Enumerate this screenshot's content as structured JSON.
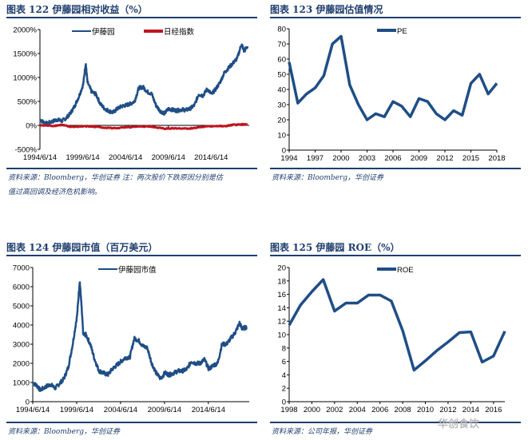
{
  "charts": [
    {
      "title": "图表 122   伊藤园相对收益（%）",
      "source": "资料来源：Bloomberg，华创证券 注：两次股价下跌原因分别是估",
      "source2": "值过高回调及经济危机影响。"
    },
    {
      "title": "图表 123   伊藤园估值情况",
      "source": "资料来源：Bloomberg，华创证券"
    },
    {
      "title": "图表 124   伊藤园市值（百万美元）",
      "source": "资料来源：Bloomberg，华创证券"
    },
    {
      "title": "图表 125   伊藤园 ROE（%）",
      "source": "资料来源：公司年报，华创证券"
    }
  ],
  "watermark": "华创食饮",
  "chart_data": [
    {
      "type": "line",
      "ylim": [
        -500,
        2000
      ],
      "yticks": [
        "-500%",
        "0%",
        "500%",
        "1000%",
        "1500%",
        "2000%"
      ],
      "ytick_values": [
        -500,
        0,
        500,
        1000,
        1500,
        2000
      ],
      "xticks": [
        "1994/6/14",
        "1999/6/14",
        "2004/6/14",
        "2009/6/14",
        "2014/6/14"
      ],
      "xtick_values": [
        1994.45,
        1999.45,
        2004.45,
        2009.45,
        2014.45
      ],
      "xlim": [
        1994.45,
        2018.9
      ],
      "legend": "top",
      "colors": {
        "伊藤园": "#1f4e85",
        "日经指数": "#c0141e"
      },
      "series": [
        {
          "name": "伊藤园",
          "x": [
            1994.45,
            1995,
            1995.3,
            1996,
            1996.5,
            1997,
            1997.5,
            1998,
            1998.5,
            1999,
            1999.5,
            1999.8,
            2000,
            2000.5,
            2001,
            2001.5,
            2002,
            2002.5,
            2003,
            2003.5,
            2004,
            2004.5,
            2005,
            2005.5,
            2006,
            2006.5,
            2007,
            2007.5,
            2008,
            2008.5,
            2009,
            2009.5,
            2010,
            2010.5,
            2011,
            2011.5,
            2012,
            2012.5,
            2013,
            2013.5,
            2014,
            2014.5,
            2015,
            2015.5,
            2016,
            2016.5,
            2017,
            2017.5,
            2018,
            2018.3,
            2018.7
          ],
          "y": [
            120,
            50,
            40,
            90,
            120,
            90,
            150,
            250,
            400,
            600,
            850,
            1300,
            900,
            700,
            650,
            450,
            350,
            300,
            270,
            350,
            400,
            420,
            450,
            500,
            780,
            800,
            700,
            660,
            420,
            300,
            250,
            350,
            320,
            310,
            330,
            320,
            350,
            420,
            650,
            620,
            760,
            650,
            760,
            900,
            1100,
            1200,
            1300,
            1400,
            1700,
            1550,
            1650
          ]
        },
        {
          "name": "日经指数",
          "x": [
            1994.45,
            1996,
            1997,
            1998,
            2000,
            2001,
            2003,
            2005,
            2007,
            2008,
            2009,
            2010,
            2012,
            2013,
            2015,
            2016,
            2017,
            2018,
            2018.7
          ],
          "y": [
            0,
            -10,
            10,
            -30,
            -20,
            -30,
            -60,
            -40,
            -20,
            -40,
            -70,
            -60,
            -65,
            -40,
            -10,
            -20,
            10,
            20,
            15
          ]
        }
      ]
    },
    {
      "type": "line",
      "ylim": [
        0,
        80
      ],
      "yticks": [
        "0",
        "10",
        "20",
        "30",
        "40",
        "50",
        "60",
        "70",
        "80"
      ],
      "ytick_values": [
        0,
        10,
        20,
        30,
        40,
        50,
        60,
        70,
        80
      ],
      "xticks": [
        "1994",
        "1997",
        "2000",
        "2003",
        "2006",
        "2009",
        "2012",
        "2015",
        "2018"
      ],
      "xlim": [
        1994,
        2018
      ],
      "legend": "top",
      "colors": {
        "PE": "#1f4e85"
      },
      "series": [
        {
          "name": "PE",
          "x": [
            1994,
            1995,
            1996,
            1997,
            1998,
            1999,
            2000,
            2001,
            2002,
            2003,
            2004,
            2005,
            2006,
            2007,
            2008,
            2009,
            2010,
            2011,
            2012,
            2013,
            2014,
            2015,
            2016,
            2017,
            2018
          ],
          "y": [
            58,
            31,
            37,
            41,
            49,
            70,
            75,
            43,
            30,
            20,
            24,
            22,
            32,
            29,
            22,
            34,
            32,
            24,
            20,
            26,
            23,
            44,
            50,
            37,
            44
          ]
        }
      ]
    },
    {
      "type": "line",
      "ylim": [
        0,
        7000
      ],
      "yticks": [
        "0",
        "1000",
        "2000",
        "3000",
        "4000",
        "5000",
        "6000",
        "7000"
      ],
      "ytick_values": [
        0,
        1000,
        2000,
        3000,
        4000,
        5000,
        6000,
        7000
      ],
      "xticks": [
        "1994/6/14",
        "1999/6/14",
        "2004/6/14",
        "2009/6/14",
        "2014/6/14"
      ],
      "xtick_values": [
        1994.45,
        1999.45,
        2004.45,
        2009.45,
        2014.45
      ],
      "xlim": [
        1994.45,
        2019.1
      ],
      "legend": "top",
      "colors": {
        "伊藤园市值": "#1f4e85"
      },
      "series": [
        {
          "name": "伊藤园市值",
          "x": [
            1994.45,
            1995,
            1995.3,
            1996,
            1996.5,
            1997,
            1997.5,
            1998,
            1998.5,
            1999,
            1999.5,
            1999.8,
            2000,
            2000.2,
            2000.5,
            2001,
            2001.5,
            2002,
            2002.5,
            2003,
            2003.5,
            2004,
            2004.5,
            2005,
            2005.5,
            2006,
            2006.5,
            2007,
            2007.5,
            2008,
            2008.5,
            2009,
            2009.5,
            2010,
            2010.5,
            2011,
            2011.5,
            2012,
            2012.5,
            2013,
            2013.5,
            2014,
            2014.5,
            2015,
            2015.5,
            2016,
            2016.5,
            2017,
            2017.5,
            2018,
            2018.3,
            2018.8
          ],
          "y": [
            1000,
            800,
            600,
            800,
            900,
            700,
            950,
            1200,
            1800,
            3000,
            4500,
            6300,
            5000,
            3500,
            3500,
            3000,
            2200,
            1600,
            1500,
            1400,
            1700,
            1900,
            2100,
            2300,
            2300,
            3300,
            3200,
            2900,
            2800,
            2000,
            1500,
            1200,
            1500,
            1400,
            1500,
            1600,
            1600,
            1700,
            2100,
            2000,
            2000,
            2200,
            1700,
            1900,
            2000,
            3000,
            3000,
            3300,
            3600,
            4100,
            3800,
            3900
          ]
        }
      ]
    },
    {
      "type": "line",
      "ylim": [
        0,
        20
      ],
      "yticks": [
        "0",
        "2",
        "4",
        "6",
        "8",
        "10",
        "12",
        "14",
        "16",
        "18",
        "20"
      ],
      "ytick_values": [
        0,
        2,
        4,
        6,
        8,
        10,
        12,
        14,
        16,
        18,
        20
      ],
      "xticks": [
        "1998",
        "2000",
        "2002",
        "2004",
        "2006",
        "2008",
        "2010",
        "2012",
        "2014",
        "2016"
      ],
      "xlim": [
        1998,
        2017
      ],
      "legend": "top",
      "colors": {
        "ROE": "#1f4e85"
      },
      "series": [
        {
          "name": "ROE",
          "x": [
            1998,
            1999,
            2000,
            2001,
            2002,
            2003,
            2004,
            2005,
            2006,
            2007,
            2008,
            2009,
            2010,
            2011,
            2012,
            2013,
            2014,
            2015,
            2016,
            2017
          ],
          "y": [
            11.4,
            14.4,
            16.4,
            18.2,
            13.5,
            14.7,
            14.7,
            15.9,
            15.9,
            15.0,
            10.6,
            4.7,
            6.1,
            7.6,
            8.9,
            10.3,
            10.4,
            5.9,
            6.8,
            10.5
          ]
        }
      ]
    }
  ]
}
